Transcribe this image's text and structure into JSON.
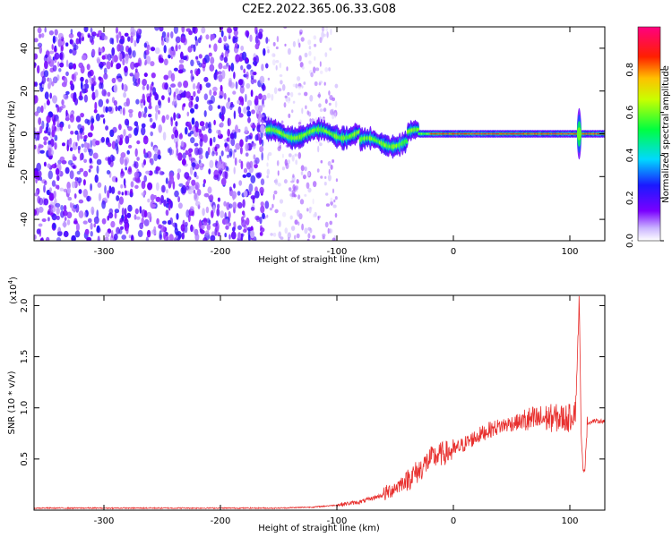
{
  "title": "C2E2.2022.365.06.33.G08",
  "colors": {
    "snr_line": "#e8302e",
    "spectrogram_scatter": "#6a1ef0",
    "axis": "#000000"
  },
  "chart_data": [
    {
      "type": "heatmap",
      "xlabel": "Height of straight line (km)",
      "ylabel": "Frequency (Hz)",
      "xlim": [
        -360,
        130
      ],
      "ylim": [
        -50,
        50
      ],
      "x_ticks": [
        -300,
        -200,
        -100,
        0,
        100
      ],
      "y_ticks": [
        -40,
        -20,
        0,
        20,
        40
      ],
      "grid": false,
      "colorbar": {
        "label": "Normalized spectral amplitude",
        "range": [
          0.0,
          1.0
        ],
        "ticks": [
          0.0,
          0.2,
          0.4,
          0.6,
          0.8
        ],
        "tick_labels": [
          "0.0",
          "0.2",
          "0.4",
          "0.6",
          "0.8"
        ],
        "colormap": "rainbow (violet-blue-cyan-green-yellow-red-pink)"
      },
      "features": [
        {
          "name": "noise",
          "x_range": [
            -360,
            -160
          ],
          "y_range": [
            -50,
            50
          ],
          "amplitude": 0.15
        },
        {
          "name": "sparse_noise",
          "x_range": [
            -160,
            -100
          ],
          "y_range": [
            -50,
            50
          ],
          "amplitude": 0.08
        },
        {
          "name": "signal_band",
          "x_range": [
            -160,
            130
          ],
          "center_hz": 0,
          "amplitude": 0.85
        },
        {
          "name": "spike",
          "x": 108,
          "y_range": [
            -12,
            12
          ],
          "amplitude": 0.6
        }
      ]
    },
    {
      "type": "line",
      "xlabel": "Height of straight line (km)",
      "ylabel": "SNR (10 * v/v)",
      "y_scale_label": "(x10",
      "y_scale_exp": "4",
      "y_scale_close": ")",
      "xlim": [
        -360,
        130
      ],
      "ylim": [
        0,
        2.1
      ],
      "x_ticks": [
        -300,
        -200,
        -100,
        0,
        100
      ],
      "y_ticks": [
        0.5,
        1.0,
        1.5,
        2.0
      ],
      "y_tick_labels": [
        "0.5",
        "1.0",
        "1.5",
        "2.0"
      ],
      "grid": false,
      "series": [
        {
          "x": [
            -360,
            -300,
            -200,
            -150,
            -120,
            -100,
            -80,
            -60,
            -50,
            -40,
            -30,
            -20,
            -10,
            0,
            10,
            20,
            30,
            40,
            50,
            60,
            70,
            80,
            90,
            100,
            105,
            108,
            110,
            112,
            115,
            120,
            130
          ],
          "values": [
            0.02,
            0.02,
            0.02,
            0.02,
            0.03,
            0.05,
            0.08,
            0.15,
            0.22,
            0.3,
            0.38,
            0.5,
            0.55,
            0.58,
            0.65,
            0.72,
            0.78,
            0.82,
            0.85,
            0.87,
            0.88,
            0.9,
            0.9,
            0.9,
            1.0,
            2.05,
            0.6,
            0.3,
            0.85,
            0.87,
            0.87
          ]
        }
      ]
    }
  ],
  "tick_label_texts": {
    "x": [
      "-300",
      "-200",
      "-100",
      "0",
      "100"
    ],
    "y_top": [
      "-40",
      "-20",
      "0",
      "20",
      "40"
    ]
  }
}
